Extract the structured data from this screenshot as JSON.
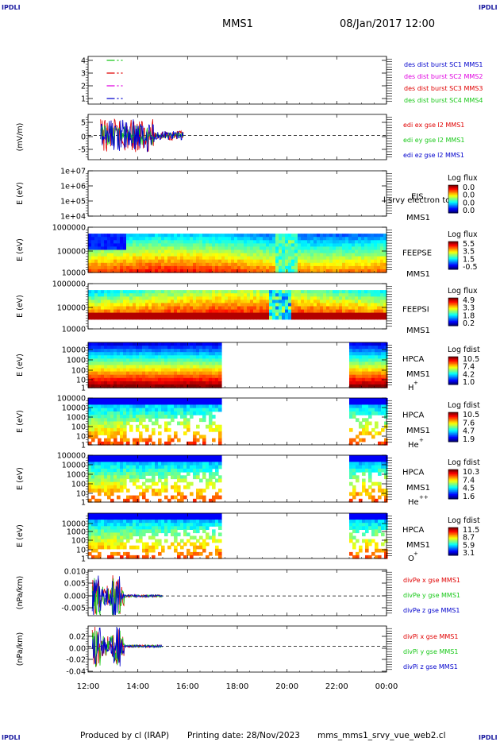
{
  "corners": [
    "IPDLI",
    "IPDLI",
    "IPDLI",
    "IPDLI"
  ],
  "header": {
    "title": "MMS1",
    "datetime": "08/Jan/2017 12:00"
  },
  "footer": {
    "produced": "Produced by cl (IRAP)",
    "printing": "Printing date: 28/Nov/2023",
    "script": "mms_mms1_srvy_vue_web2.cl"
  },
  "x_axis": {
    "ticks": [
      "12:00",
      "14:00",
      "16:00",
      "18:00",
      "20:00",
      "22:00",
      "00:00"
    ]
  },
  "colors": {
    "red": "#e00000",
    "green": "#18c818",
    "blue": "#0000cc",
    "magenta": "#e000e0",
    "black": "#000000"
  },
  "chart_data": [
    {
      "id": "des-burst",
      "type": "line",
      "yticks": [
        "4",
        "3",
        "2",
        "1"
      ],
      "ylabel": "",
      "series": [
        {
          "name": "des dist burst SC1 MMS1",
          "color": "#0000cc",
          "level": 1,
          "x": [
            "12:45",
            "13:25"
          ]
        },
        {
          "name": "des dist burst SC2 MMS2",
          "color": "#e000e0",
          "level": 2,
          "x": [
            "12:45",
            "13:25"
          ]
        },
        {
          "name": "des dist burst SC3 MMS3",
          "color": "#e00000",
          "level": 3,
          "x": [
            "12:45",
            "13:25"
          ]
        },
        {
          "name": "des dist burst SC4 MMS4",
          "color": "#18c818",
          "level": 4,
          "x": [
            "12:45",
            "13:25"
          ]
        }
      ]
    },
    {
      "id": "edi",
      "type": "line",
      "ylabel": "(mV/m)",
      "yticks": [
        "5",
        "0",
        "-5"
      ],
      "ylim": [
        -8,
        7
      ],
      "series": [
        {
          "name": "edi ex gse l2 MMS1",
          "color": "#e00000"
        },
        {
          "name": "edi ey gse l2 MMS1",
          "color": "#18c818"
        },
        {
          "name": "edi ez gse l2 MMS1",
          "color": "#0000cc"
        }
      ],
      "active_range": [
        "12:30",
        "15:50"
      ]
    },
    {
      "id": "eis",
      "type": "heatmap",
      "ylabel": "E (eV)",
      "yticks": [
        "1e+07",
        "1e+06",
        "1e+05",
        "1e+04"
      ],
      "instrument": [
        "EIS",
        "MMS1"
      ],
      "overlay": "l srvy electron to",
      "cbar": {
        "title": "Log flux",
        "ticks": [
          "0.0",
          "0.0",
          "0.0",
          "0.0"
        ]
      }
    },
    {
      "id": "feepse",
      "type": "heatmap",
      "ylabel": "E (eV)",
      "yticks": [
        "1000000",
        "100000",
        "10000"
      ],
      "instrument": [
        "FEEPSE",
        "MMS1"
      ],
      "cbar": {
        "title": "Log flux",
        "ticks": [
          "5.5",
          "3.5",
          "1.5",
          "-0.5"
        ]
      }
    },
    {
      "id": "feepsi",
      "type": "heatmap",
      "ylabel": "E (eV)",
      "yticks": [
        "1000000",
        "100000",
        "10000"
      ],
      "instrument": [
        "FEEPSI",
        "MMS1"
      ],
      "cbar": {
        "title": "Log flux",
        "ticks": [
          "4.9",
          "3.3",
          "1.8",
          "0.2"
        ]
      }
    },
    {
      "id": "hpca-h",
      "type": "heatmap",
      "ylabel": "E (eV)",
      "yticks": [
        "10000",
        "1000",
        "100",
        "10",
        "1"
      ],
      "instrument": [
        "HPCA",
        "MMS1"
      ],
      "species": "H",
      "charge": "+",
      "cbar": {
        "title": "Log fdist",
        "ticks": [
          "10.5",
          "7.4",
          "4.2",
          "1.0"
        ]
      }
    },
    {
      "id": "hpca-he1",
      "type": "heatmap",
      "ylabel": "E (eV)",
      "yticks": [
        "100000",
        "10000",
        "1000",
        "100",
        "10",
        "1"
      ],
      "instrument": [
        "HPCA",
        "MMS1"
      ],
      "species": "He",
      "charge": "+",
      "cbar": {
        "title": "Log fdist",
        "ticks": [
          "10.5",
          "7.6",
          "4.7",
          "1.9"
        ]
      }
    },
    {
      "id": "hpca-he2",
      "type": "heatmap",
      "ylabel": "E (eV)",
      "yticks": [
        "100000",
        "10000",
        "1000",
        "100",
        "10",
        "1"
      ],
      "instrument": [
        "HPCA",
        "MMS1"
      ],
      "species": "He",
      "charge": "++",
      "cbar": {
        "title": "Log fdist",
        "ticks": [
          "10.3",
          "7.4",
          "4.5",
          "1.6"
        ]
      }
    },
    {
      "id": "hpca-o",
      "type": "heatmap",
      "ylabel": "E (eV)",
      "yticks": [
        "10000",
        "1000",
        "100",
        "10",
        "1"
      ],
      "instrument": [
        "HPCA",
        "MMS1"
      ],
      "species": "O",
      "charge": "+",
      "cbar": {
        "title": "Log fdist",
        "ticks": [
          "11.5",
          "8.7",
          "5.9",
          "3.1"
        ]
      }
    },
    {
      "id": "divpe",
      "type": "line",
      "ylabel": "(nPa/km)",
      "yticks": [
        "0.010",
        "0.005",
        "0.000",
        "-0.005"
      ],
      "ylim": [
        -0.009,
        0.012
      ],
      "series": [
        {
          "name": "divPe x gse MMS1",
          "color": "#e00000"
        },
        {
          "name": "divPe y gse MMS1",
          "color": "#18c818"
        },
        {
          "name": "divPe z gse MMS1",
          "color": "#0000cc"
        }
      ],
      "active_range": [
        "12:10",
        "15:00"
      ]
    },
    {
      "id": "divpi",
      "type": "line",
      "ylabel": "(nPa/km)",
      "yticks": [
        "0.02",
        "0.00",
        "-0.02",
        "-0.04"
      ],
      "ylim": [
        -0.045,
        0.035
      ],
      "series": [
        {
          "name": "divPi x gse MMS1",
          "color": "#e00000"
        },
        {
          "name": "divPi y gse MMS1",
          "color": "#18c818"
        },
        {
          "name": "divPi z gse MMS1",
          "color": "#0000cc"
        }
      ],
      "active_range": [
        "12:10",
        "15:00"
      ]
    }
  ]
}
